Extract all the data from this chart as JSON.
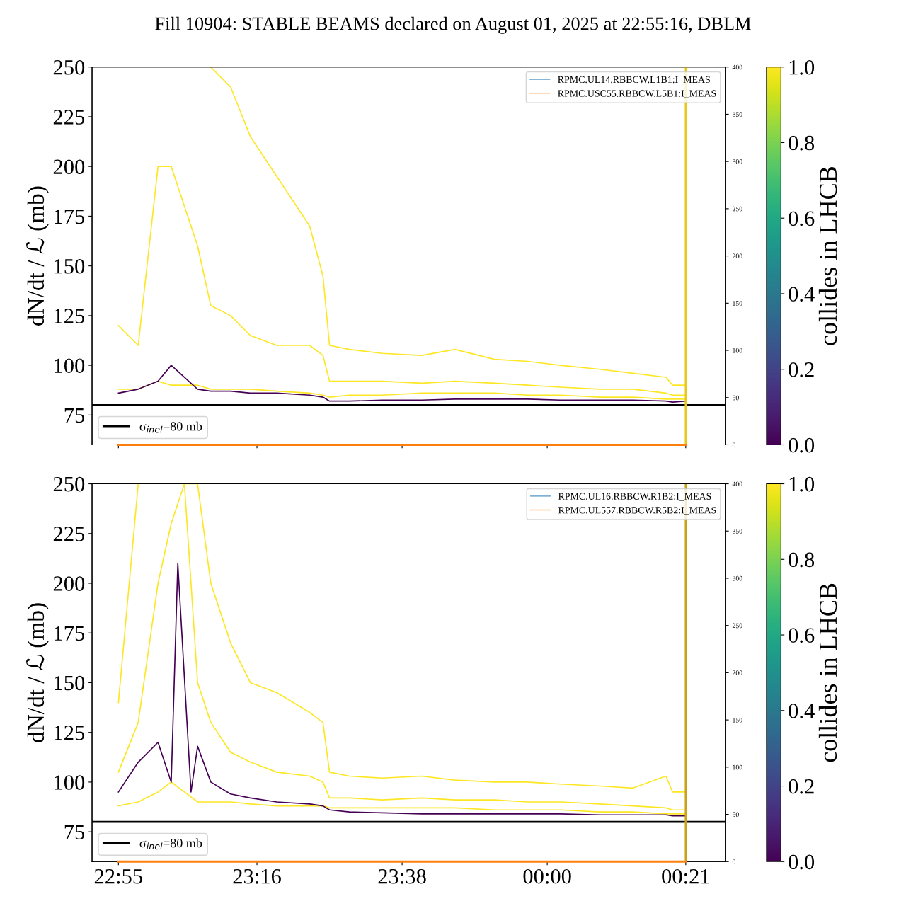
{
  "chart_data": [
    {
      "type": "line",
      "title": "Fill 10904: STABLE BEAMS declared on August 01, 2025 at 22:55:16, DBLM",
      "ylabel": "dN/dt / ℒ (mb)",
      "clabel": "collides in LHCB",
      "xlim": [
        "2025-08-01T22:51",
        "2025-08-02T00:27"
      ],
      "xticks": [
        {
          "value": "2025-08-01T22:55",
          "label": null
        },
        {
          "value": "2025-08-01T23:16",
          "label": null
        },
        {
          "value": "2025-08-01T23:38",
          "label": null
        },
        {
          "value": "2025-08-02T00:00",
          "label": null
        },
        {
          "value": "2025-08-02T00:21",
          "label": null
        }
      ],
      "ylim": [
        60,
        250
      ],
      "yticks": [
        75,
        100,
        125,
        150,
        175,
        200,
        225,
        250
      ],
      "y2lim": [
        0,
        400
      ],
      "y2ticks": [
        0,
        50,
        100,
        150,
        200,
        250,
        300,
        350,
        400
      ],
      "clim": [
        0,
        1
      ],
      "cticks": [
        {
          "value": 0,
          "label": "0.0"
        },
        {
          "value": 0.2,
          "label": "0.2"
        },
        {
          "value": 0.4,
          "label": "0.4"
        },
        {
          "value": 0.6,
          "label": "0.6"
        },
        {
          "value": 0.8,
          "label": "0.8"
        },
        {
          "value": 1,
          "label": "1.0"
        }
      ],
      "tick_labels": "y",
      "legend": "top right",
      "series": [
        {
          "color": "#fde725",
          "x": [
            "2025-08-01T23:09",
            "2025-08-01T23:12",
            "2025-08-01T23:15",
            "2025-08-01T23:19",
            "2025-08-01T23:24",
            "2025-08-01T23:26",
            "2025-08-01T23:27",
            "2025-08-01T23:30",
            "2025-08-01T23:35",
            "2025-08-01T23:41",
            "2025-08-01T23:46",
            "2025-08-01T23:52",
            "2025-08-01T23:57",
            "2025-08-02T00:02",
            "2025-08-02T00:08",
            "2025-08-02T00:13",
            "2025-08-02T00:18",
            "2025-08-02T00:19",
            "2025-08-02T00:21"
          ],
          "values": [
            250,
            240,
            215,
            195,
            170,
            145,
            110,
            108,
            106,
            105,
            108,
            103,
            102,
            100,
            98,
            96,
            94,
            90,
            90
          ]
        },
        {
          "color": "#fde725",
          "x": [
            "2025-08-01T22:55",
            "2025-08-01T22:58",
            "2025-08-01T23:01",
            "2025-08-01T23:03",
            "2025-08-01T23:07",
            "2025-08-01T23:09",
            "2025-08-01T23:12",
            "2025-08-01T23:15",
            "2025-08-01T23:19",
            "2025-08-01T23:24",
            "2025-08-01T23:26",
            "2025-08-01T23:27",
            "2025-08-01T23:30",
            "2025-08-01T23:35",
            "2025-08-01T23:41",
            "2025-08-01T23:46",
            "2025-08-01T23:52",
            "2025-08-01T23:57",
            "2025-08-02T00:02",
            "2025-08-02T00:08",
            "2025-08-02T00:13",
            "2025-08-02T00:18",
            "2025-08-02T00:19",
            "2025-08-02T00:21"
          ],
          "values": [
            120,
            110,
            200,
            200,
            160,
            130,
            125,
            115,
            110,
            110,
            105,
            92,
            92,
            92,
            91,
            92,
            91,
            90,
            89,
            88,
            88,
            86,
            85,
            85
          ]
        },
        {
          "color": "#fde725",
          "x": [
            "2025-08-01T22:55",
            "2025-08-01T22:58",
            "2025-08-01T23:01",
            "2025-08-01T23:03",
            "2025-08-01T23:07",
            "2025-08-01T23:09",
            "2025-08-01T23:12",
            "2025-08-01T23:15",
            "2025-08-01T23:19",
            "2025-08-01T23:24",
            "2025-08-01T23:26",
            "2025-08-01T23:27",
            "2025-08-01T23:30",
            "2025-08-01T23:35",
            "2025-08-01T23:41",
            "2025-08-01T23:46",
            "2025-08-01T23:52",
            "2025-08-01T23:57",
            "2025-08-02T00:02",
            "2025-08-02T00:08",
            "2025-08-02T00:13",
            "2025-08-02T00:18",
            "2025-08-02T00:19",
            "2025-08-02T00:21"
          ],
          "values": [
            88,
            88,
            92,
            90,
            90,
            88,
            88,
            88,
            87,
            86,
            85,
            84,
            85,
            85,
            86,
            86,
            86,
            85,
            85,
            84,
            84,
            83,
            83,
            83
          ]
        },
        {
          "color": "#440154",
          "x": [
            "2025-08-01T22:55",
            "2025-08-01T22:58",
            "2025-08-01T23:01",
            "2025-08-01T23:03",
            "2025-08-01T23:07",
            "2025-08-01T23:09",
            "2025-08-01T23:12",
            "2025-08-01T23:15",
            "2025-08-01T23:19",
            "2025-08-01T23:24",
            "2025-08-01T23:26",
            "2025-08-01T23:27",
            "2025-08-01T23:30",
            "2025-08-01T23:35",
            "2025-08-01T23:41",
            "2025-08-01T23:46",
            "2025-08-01T23:52",
            "2025-08-01T23:57",
            "2025-08-02T00:02",
            "2025-08-02T00:08",
            "2025-08-02T00:13",
            "2025-08-02T00:18",
            "2025-08-02T00:19",
            "2025-08-02T00:21"
          ],
          "values": [
            86,
            88,
            92,
            100,
            88,
            87,
            87,
            86,
            86,
            85,
            84,
            82,
            82,
            82.5,
            82.5,
            83,
            83,
            83,
            82.5,
            82.5,
            82.5,
            82,
            81.5,
            82
          ]
        },
        {
          "name": "RPMC.UL14.RBBCW.L1B1:I_MEAS",
          "color": "#1f77b4",
          "axis": "y2"
        },
        {
          "name": "RPMC.USC55.RBBCW.L5B1:I_MEAS",
          "color": "#ff7f0e",
          "axis": "y2",
          "x": [
            "2025-08-01T22:55",
            "2025-08-02T00:21"
          ],
          "values": [
            0,
            0
          ]
        }
      ],
      "ref_lines": [
        {
          "axis": "y",
          "value": 80,
          "label": "σ$_{inel}$=80 mb",
          "color": "#000000"
        },
        {
          "axis": "x",
          "value": "2025-08-02T00:21",
          "color": "#e8c81a"
        }
      ]
    },
    {
      "type": "line",
      "ylabel": "dN/dt / ℒ (mb)",
      "clabel": "collides in LHCB",
      "xlim": [
        "2025-08-01T22:51",
        "2025-08-02T00:27"
      ],
      "xticks": [
        {
          "value": "2025-08-01T22:55",
          "label": "22:55"
        },
        {
          "value": "2025-08-01T23:16",
          "label": "23:16"
        },
        {
          "value": "2025-08-01T23:38",
          "label": "23:38"
        },
        {
          "value": "2025-08-02T00:00",
          "label": "00:00"
        },
        {
          "value": "2025-08-02T00:21",
          "label": "00:21"
        }
      ],
      "ylim": [
        60,
        250
      ],
      "yticks": [
        75,
        100,
        125,
        150,
        175,
        200,
        225,
        250
      ],
      "y2lim": [
        0,
        400
      ],
      "y2ticks": [
        0,
        50,
        100,
        150,
        200,
        250,
        300,
        350,
        400
      ],
      "clim": [
        0,
        1
      ],
      "cticks": [
        {
          "value": 0,
          "label": "0.0"
        },
        {
          "value": 0.2,
          "label": "0.2"
        },
        {
          "value": 0.4,
          "label": "0.4"
        },
        {
          "value": 0.6,
          "label": "0.6"
        },
        {
          "value": 0.8,
          "label": "0.8"
        },
        {
          "value": 1,
          "label": "1.0"
        }
      ],
      "legend": "top right",
      "series": [
        {
          "color": "#fde725",
          "x": [
            "2025-08-01T22:55",
            "2025-08-01T22:58",
            "2025-08-01T23:01",
            "2025-08-01T23:03",
            "2025-08-01T23:05",
            "2025-08-01T23:07",
            "2025-08-01T23:09",
            "2025-08-01T23:12",
            "2025-08-01T23:15",
            "2025-08-01T23:19",
            "2025-08-01T23:24",
            "2025-08-01T23:26",
            "2025-08-01T23:27",
            "2025-08-01T23:30",
            "2025-08-01T23:35",
            "2025-08-01T23:41",
            "2025-08-01T23:46",
            "2025-08-01T23:52",
            "2025-08-01T23:57",
            "2025-08-02T00:02",
            "2025-08-02T00:08",
            "2025-08-02T00:13",
            "2025-08-02T00:18",
            "2025-08-02T00:19",
            "2025-08-02T00:21"
          ],
          "values": [
            140,
            250,
            null,
            null,
            250,
            250,
            200,
            170,
            150,
            145,
            135,
            130,
            105,
            103,
            102,
            103,
            101,
            100,
            100,
            99,
            98,
            97,
            103,
            95,
            95
          ]
        },
        {
          "color": "#fde725",
          "x": [
            "2025-08-01T22:55",
            "2025-08-01T22:58",
            "2025-08-01T23:01",
            "2025-08-01T23:03",
            "2025-08-01T23:05",
            "2025-08-01T23:07",
            "2025-08-01T23:09",
            "2025-08-01T23:12",
            "2025-08-01T23:15",
            "2025-08-01T23:19",
            "2025-08-01T23:24",
            "2025-08-01T23:26",
            "2025-08-01T23:27",
            "2025-08-01T23:30",
            "2025-08-01T23:35",
            "2025-08-01T23:41",
            "2025-08-01T23:46",
            "2025-08-01T23:52",
            "2025-08-01T23:57",
            "2025-08-02T00:02",
            "2025-08-02T00:08",
            "2025-08-02T00:13",
            "2025-08-02T00:18",
            "2025-08-02T00:19",
            "2025-08-02T00:21"
          ],
          "values": [
            105,
            130,
            200,
            230,
            250,
            150,
            130,
            115,
            110,
            105,
            103,
            100,
            92,
            92,
            91,
            92,
            91,
            91,
            90,
            90,
            89,
            88,
            87,
            86,
            86
          ]
        },
        {
          "color": "#fde725",
          "x": [
            "2025-08-01T22:55",
            "2025-08-01T22:58",
            "2025-08-01T23:01",
            "2025-08-01T23:03",
            "2025-08-01T23:05",
            "2025-08-01T23:07",
            "2025-08-01T23:09",
            "2025-08-01T23:12",
            "2025-08-01T23:15",
            "2025-08-01T23:19",
            "2025-08-01T23:24",
            "2025-08-01T23:26",
            "2025-08-01T23:27",
            "2025-08-01T23:30",
            "2025-08-01T23:35",
            "2025-08-01T23:41",
            "2025-08-01T23:46",
            "2025-08-01T23:52",
            "2025-08-01T23:57",
            "2025-08-02T00:02",
            "2025-08-02T00:08",
            "2025-08-02T00:13",
            "2025-08-02T00:18",
            "2025-08-02T00:19",
            "2025-08-02T00:21"
          ],
          "values": [
            88,
            90,
            95,
            100,
            95,
            90,
            90,
            90,
            89,
            88,
            88,
            88,
            87,
            87,
            87,
            87,
            87,
            86,
            86,
            86,
            85,
            85,
            84,
            84,
            84
          ]
        },
        {
          "color": "#440154",
          "x": [
            "2025-08-01T22:55",
            "2025-08-01T22:58",
            "2025-08-01T23:01",
            "2025-08-01T23:03",
            "2025-08-01T23:04",
            "2025-08-01T23:06",
            "2025-08-01T23:07",
            "2025-08-01T23:09",
            "2025-08-01T23:12",
            "2025-08-01T23:15",
            "2025-08-01T23:19",
            "2025-08-01T23:24",
            "2025-08-01T23:26",
            "2025-08-01T23:27",
            "2025-08-01T23:30",
            "2025-08-01T23:35",
            "2025-08-01T23:41",
            "2025-08-01T23:46",
            "2025-08-01T23:52",
            "2025-08-01T23:57",
            "2025-08-02T00:02",
            "2025-08-02T00:08",
            "2025-08-02T00:13",
            "2025-08-02T00:18",
            "2025-08-02T00:19",
            "2025-08-02T00:21"
          ],
          "values": [
            95,
            110,
            120,
            100,
            210,
            95,
            118,
            100,
            94,
            92,
            90,
            89,
            88,
            86,
            85,
            84.5,
            84,
            84,
            84,
            84,
            84,
            83.5,
            83.5,
            83.5,
            83,
            83
          ]
        },
        {
          "name": "RPMC.UL16.RBBCW.R1B2:I_MEAS",
          "color": "#1f77b4",
          "axis": "y2"
        },
        {
          "name": "RPMC.UL557.RBBCW.R5B2:I_MEAS",
          "color": "#ff7f0e",
          "axis": "y2",
          "x": [
            "2025-08-01T22:55",
            "2025-08-02T00:21"
          ],
          "values": [
            0,
            0
          ]
        }
      ],
      "ref_lines": [
        {
          "axis": "y",
          "value": 80,
          "label": "σ$_{inel}$=80 mb",
          "color": "#000000"
        },
        {
          "axis": "x",
          "value": "2025-08-02T00:21",
          "color": "#c9a21a"
        }
      ]
    }
  ]
}
